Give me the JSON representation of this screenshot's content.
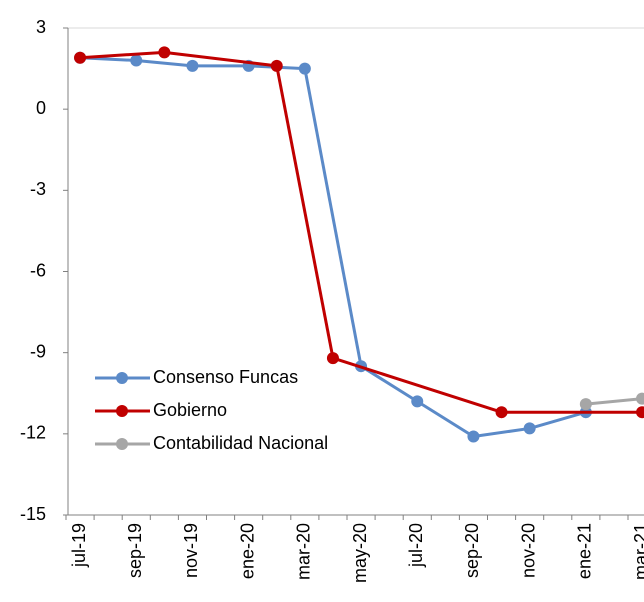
{
  "chart_data": {
    "type": "line",
    "categories": [
      "jul-19",
      null,
      "sep-19",
      null,
      "nov-19",
      null,
      "ene-20",
      null,
      "mar-20",
      null,
      "may-20",
      null,
      "jul-20",
      null,
      "sep-20",
      null,
      "nov-20",
      null,
      "ene-21",
      null,
      "mar-21"
    ],
    "series": [
      {
        "name": "Consenso Funcas",
        "color": "#5b8ac8",
        "values": [
          1.9,
          null,
          1.8,
          null,
          1.6,
          null,
          1.6,
          null,
          1.5,
          null,
          -9.5,
          null,
          -10.8,
          null,
          -12.1,
          null,
          -11.8,
          null,
          -11.2,
          null,
          null
        ]
      },
      {
        "name": "Gobierno",
        "color": "#c00000",
        "values": [
          1.9,
          null,
          null,
          2.1,
          null,
          null,
          null,
          1.6,
          null,
          -9.2,
          null,
          null,
          null,
          null,
          null,
          -11.2,
          null,
          null,
          null,
          null,
          -11.2
        ]
      },
      {
        "name": "Contabilidad Nacional",
        "color": "#a6a6a6",
        "values": [
          null,
          null,
          null,
          null,
          null,
          null,
          null,
          null,
          null,
          null,
          null,
          null,
          null,
          null,
          null,
          null,
          null,
          null,
          -10.9,
          null,
          -10.7
        ]
      }
    ],
    "ylim": [
      -15,
      3
    ],
    "yticks": [
      -15,
      -12,
      -9,
      -6,
      -3,
      0,
      3
    ],
    "legend": "lower left"
  }
}
